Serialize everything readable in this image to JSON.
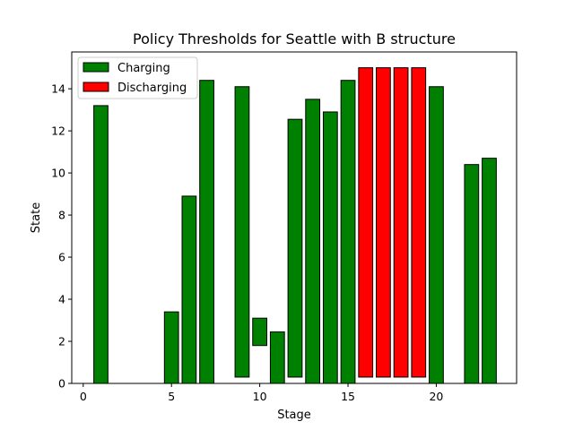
{
  "chart_data": {
    "type": "bar",
    "title": "Policy Thresholds for Seattle with B structure",
    "xlabel": "Stage",
    "ylabel": "State",
    "xlim": [
      -0.65,
      24.55
    ],
    "ylim": [
      0,
      15.75
    ],
    "xticks": [
      0,
      5,
      10,
      15,
      20
    ],
    "yticks": [
      0,
      2,
      4,
      6,
      8,
      10,
      12,
      14
    ],
    "legend_position": "upper left",
    "colors": {
      "charging": "#008000",
      "discharging": "#ff0000",
      "edge": "#000000"
    },
    "series": [
      {
        "name": "Charging",
        "color": "#008000",
        "bars": [
          {
            "x": 1,
            "bottom": 0,
            "top": 13.2
          },
          {
            "x": 5,
            "bottom": 0,
            "top": 3.4
          },
          {
            "x": 6,
            "bottom": 0,
            "top": 8.9
          },
          {
            "x": 7,
            "bottom": 0,
            "top": 14.4
          },
          {
            "x": 8,
            "bottom": 0,
            "top": 0
          },
          {
            "x": 9,
            "bottom": 0.3,
            "top": 14.1
          },
          {
            "x": 10,
            "bottom": 1.8,
            "top": 3.1
          },
          {
            "x": 11,
            "bottom": 0,
            "top": 2.45
          },
          {
            "x": 12,
            "bottom": 0.3,
            "top": 12.55
          },
          {
            "x": 13,
            "bottom": 0,
            "top": 13.5
          },
          {
            "x": 14,
            "bottom": 0,
            "top": 12.9
          },
          {
            "x": 15,
            "bottom": 0,
            "top": 14.4
          },
          {
            "x": 20,
            "bottom": 0,
            "top": 14.1
          },
          {
            "x": 21,
            "bottom": 0,
            "top": 0
          },
          {
            "x": 22,
            "bottom": 0,
            "top": 10.4
          },
          {
            "x": 23,
            "bottom": 0,
            "top": 10.7
          }
        ]
      },
      {
        "name": "Discharging",
        "color": "#ff0000",
        "bars": [
          {
            "x": 16,
            "bottom": 0.3,
            "top": 15.0
          },
          {
            "x": 17,
            "bottom": 0.3,
            "top": 15.0
          },
          {
            "x": 18,
            "bottom": 0.3,
            "top": 15.0
          },
          {
            "x": 19,
            "bottom": 0.3,
            "top": 15.0
          }
        ]
      }
    ]
  }
}
